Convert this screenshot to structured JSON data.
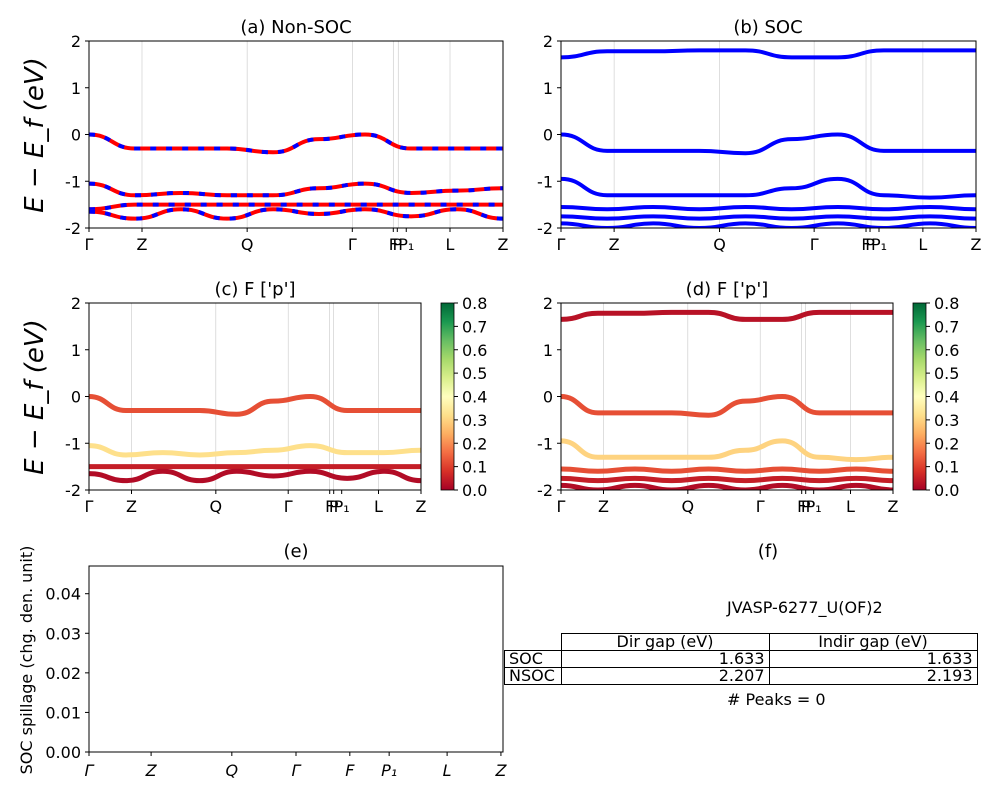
{
  "kpath_labels": [
    "Γ",
    "Z",
    "Q",
    "Γ",
    "F",
    "P",
    "P₁",
    "L",
    "Z"
  ],
  "ylabel_energy": "E − E_f (eV)",
  "panels": {
    "a": {
      "title": "(a) Non-SOC"
    },
    "b": {
      "title": "(b) SOC"
    },
    "c": {
      "title": "(c)  F ['p']"
    },
    "d": {
      "title": "(d) F ['p']"
    },
    "e": {
      "title": "(e)",
      "ylabel": "SOC spillage (chg. den. unit)"
    },
    "f": {
      "title": "(f)"
    }
  },
  "colorbar": {
    "ticks": [
      "0.0",
      "0.1",
      "0.2",
      "0.3",
      "0.4",
      "0.5",
      "0.6",
      "0.7",
      "0.8"
    ],
    "colormap": "RdYlGn"
  },
  "info": {
    "material": "JVASP-6277_U(OF)2",
    "header": [
      "Dir gap (eV)",
      "Indir gap (eV)"
    ],
    "rows": [
      {
        "label": "SOC",
        "dir": "1.633",
        "indir": "1.633"
      },
      {
        "label": "NSOC",
        "dir": "2.207",
        "indir": "2.193"
      }
    ],
    "peaks": "# Peaks = 0"
  },
  "chart_data": [
    {
      "type": "line",
      "title": "(a) Non-SOC",
      "ylabel": "E − E_f (eV)",
      "ylim": [
        -2,
        2
      ],
      "yticks": [
        2,
        1,
        0,
        -1,
        -2
      ],
      "series": [
        {
          "color": "#ff0000",
          "style": "solid+dashed blue overlay",
          "values": [
            0.0,
            -0.3,
            -0.3,
            -0.3,
            -0.38,
            -0.1,
            0.0,
            -0.3,
            -0.3,
            -0.3
          ]
        },
        {
          "color": "#ff0000",
          "values": [
            -1.05,
            -1.3,
            -1.25,
            -1.3,
            -1.3,
            -1.15,
            -1.05,
            -1.25,
            -1.2,
            -1.15
          ]
        },
        {
          "color": "#ff0000",
          "values": [
            -1.6,
            -1.5,
            -1.5,
            -1.5,
            -1.5,
            -1.5,
            -1.5,
            -1.5,
            -1.5,
            -1.5
          ]
        },
        {
          "color": "#ff0000",
          "values": [
            -1.65,
            -1.8,
            -1.6,
            -1.8,
            -1.6,
            -1.7,
            -1.6,
            -1.75,
            -1.6,
            -1.8
          ]
        }
      ]
    },
    {
      "type": "line",
      "title": "(b) SOC",
      "ylim": [
        -2,
        2
      ],
      "yticks": [
        2,
        1,
        0,
        -1,
        -2
      ],
      "series": [
        {
          "color": "#0000ff",
          "values": [
            1.65,
            1.78,
            1.78,
            1.8,
            1.8,
            1.65,
            1.65,
            1.8,
            1.8,
            1.8
          ]
        },
        {
          "color": "#0000ff",
          "values": [
            0.0,
            -0.35,
            -0.35,
            -0.35,
            -0.4,
            -0.1,
            0.0,
            -0.35,
            -0.35,
            -0.35
          ]
        },
        {
          "color": "#0000ff",
          "values": [
            -0.95,
            -1.3,
            -1.3,
            -1.3,
            -1.3,
            -1.15,
            -0.95,
            -1.3,
            -1.35,
            -1.3
          ]
        },
        {
          "color": "#0000ff",
          "values": [
            -1.55,
            -1.6,
            -1.55,
            -1.6,
            -1.55,
            -1.6,
            -1.55,
            -1.6,
            -1.55,
            -1.6
          ]
        },
        {
          "color": "#0000ff",
          "values": [
            -1.75,
            -1.8,
            -1.75,
            -1.8,
            -1.75,
            -1.8,
            -1.75,
            -1.8,
            -1.75,
            -1.8
          ]
        },
        {
          "color": "#0000ff",
          "values": [
            -1.9,
            -2.0,
            -1.9,
            -2.0,
            -1.9,
            -2.0,
            -1.9,
            -2.0,
            -1.9,
            -2.0
          ]
        }
      ]
    },
    {
      "type": "scatter",
      "title": "(c)  F ['p']",
      "ylim": [
        -2,
        2
      ],
      "yticks": [
        2,
        1,
        0,
        -1,
        -2
      ],
      "colorbar": {
        "min": 0.0,
        "max": 0.8
      },
      "series": [
        {
          "weight": 0.12,
          "values": [
            0.0,
            -0.3,
            -0.3,
            -0.3,
            -0.38,
            -0.1,
            0.0,
            -0.3,
            -0.3,
            -0.3
          ]
        },
        {
          "weight": 0.32,
          "values": [
            -1.05,
            -1.25,
            -1.2,
            -1.25,
            -1.2,
            -1.15,
            -1.05,
            -1.2,
            -1.2,
            -1.15
          ]
        },
        {
          "weight": 0.05,
          "values": [
            -1.5,
            -1.5,
            -1.5,
            -1.5,
            -1.5,
            -1.5,
            -1.5,
            -1.5,
            -1.5,
            -1.5
          ]
        },
        {
          "weight": 0.02,
          "values": [
            -1.65,
            -1.8,
            -1.6,
            -1.8,
            -1.6,
            -1.7,
            -1.6,
            -1.75,
            -1.6,
            -1.8
          ]
        }
      ]
    },
    {
      "type": "scatter",
      "title": "(d) F ['p']",
      "ylim": [
        -2,
        2
      ],
      "yticks": [
        2,
        1,
        0,
        -1,
        -2
      ],
      "colorbar": {
        "min": 0.0,
        "max": 0.8
      },
      "series": [
        {
          "weight": 0.03,
          "values": [
            1.65,
            1.78,
            1.78,
            1.8,
            1.8,
            1.65,
            1.65,
            1.8,
            1.8,
            1.8
          ]
        },
        {
          "weight": 0.12,
          "values": [
            0.0,
            -0.35,
            -0.35,
            -0.35,
            -0.4,
            -0.1,
            0.0,
            -0.35,
            -0.35,
            -0.35
          ]
        },
        {
          "weight": 0.3,
          "values": [
            -0.95,
            -1.3,
            -1.3,
            -1.3,
            -1.3,
            -1.15,
            -0.95,
            -1.3,
            -1.35,
            -1.3
          ]
        },
        {
          "weight": 0.12,
          "values": [
            -1.55,
            -1.6,
            -1.55,
            -1.6,
            -1.55,
            -1.6,
            -1.55,
            -1.6,
            -1.55,
            -1.6
          ]
        },
        {
          "weight": 0.05,
          "values": [
            -1.75,
            -1.8,
            -1.75,
            -1.8,
            -1.75,
            -1.8,
            -1.75,
            -1.8,
            -1.75,
            -1.8
          ]
        },
        {
          "weight": 0.02,
          "values": [
            -1.9,
            -2.0,
            -1.9,
            -2.0,
            -1.9,
            -2.0,
            -1.9,
            -2.0,
            -1.9,
            -2.0
          ]
        }
      ]
    },
    {
      "type": "line",
      "title": "(e)",
      "ylabel": "SOC spillage (chg. den. unit)",
      "ylim": [
        0.0,
        0.047
      ],
      "yticks": [
        "0.00",
        "0.01",
        "0.02",
        "0.03",
        "0.04"
      ],
      "xticks": [
        "Γ",
        "Z",
        "Q",
        "Γ",
        "F",
        "P₁",
        "L",
        "Z"
      ],
      "series": []
    }
  ]
}
